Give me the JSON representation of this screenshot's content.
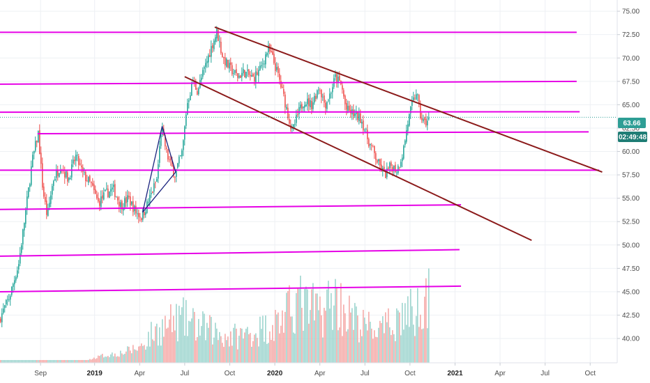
{
  "chart_data": {
    "type": "candlestick",
    "x_axis": {
      "ticks": [
        {
          "label": "Sep",
          "bold": false,
          "t": 1.4
        },
        {
          "label": "2019",
          "bold": true,
          "t": 5.0
        },
        {
          "label": "Apr",
          "bold": false,
          "t": 8.0
        },
        {
          "label": "Jul",
          "bold": false,
          "t": 11.0
        },
        {
          "label": "Oct",
          "bold": false,
          "t": 14.0
        },
        {
          "label": "2020",
          "bold": true,
          "t": 17.0
        },
        {
          "label": "Apr",
          "bold": false,
          "t": 20.0
        },
        {
          "label": "Jul",
          "bold": false,
          "t": 23.0
        },
        {
          "label": "Oct",
          "bold": false,
          "t": 26.0
        },
        {
          "label": "2021",
          "bold": true,
          "t": 29.0
        },
        {
          "label": "Apr",
          "bold": false,
          "t": 32.0
        },
        {
          "label": "Jul",
          "bold": false,
          "t": 35.0
        },
        {
          "label": "Oct",
          "bold": false,
          "t": 38.0
        }
      ],
      "xlim": [
        -1.3,
        39.8
      ]
    },
    "y_axis": {
      "ticks": [
        "75.00",
        "72.50",
        "70.00",
        "67.50",
        "65.00",
        "62.50",
        "60.00",
        "57.50",
        "55.00",
        "52.50",
        "50.00",
        "47.50",
        "45.00",
        "42.50",
        "40.00"
      ],
      "ylim": [
        37.4,
        76.2
      ],
      "step": 2.5
    },
    "last_price": {
      "value": "63.66",
      "countdown": "02:49:48",
      "value_num": 63.66
    },
    "colors": {
      "up": "#26a69a",
      "down": "#ef5350",
      "vol_up": "#9ed5cf",
      "vol_down": "#f5aaa8",
      "horizontal_lines": "#e600e6",
      "channel": "#8b1a1a",
      "pattern_lines": "#1a237e",
      "badge_price": "#2e9e95",
      "badge_timer": "#1f7d75"
    },
    "price_path": [
      [
        -1.3,
        42.0
      ],
      [
        -0.6,
        44.5
      ],
      [
        0.0,
        48.0
      ],
      [
        0.5,
        54.0
      ],
      [
        0.9,
        59.0
      ],
      [
        1.3,
        62.0
      ],
      [
        1.6,
        56.0
      ],
      [
        1.9,
        53.0
      ],
      [
        2.3,
        57.0
      ],
      [
        2.8,
        58.5
      ],
      [
        3.3,
        57.0
      ],
      [
        3.8,
        59.5
      ],
      [
        4.3,
        57.5
      ],
      [
        4.8,
        56.5
      ],
      [
        5.3,
        54.5
      ],
      [
        5.8,
        55.5
      ],
      [
        6.3,
        56.0
      ],
      [
        6.8,
        54.2
      ],
      [
        7.3,
        55.0
      ],
      [
        7.8,
        53.5
      ],
      [
        8.2,
        53.0
      ],
      [
        8.6,
        54.5
      ],
      [
        9.2,
        57.0
      ],
      [
        9.5,
        62.5
      ],
      [
        9.9,
        59.5
      ],
      [
        10.4,
        57.5
      ],
      [
        10.9,
        60.0
      ],
      [
        11.2,
        65.0
      ],
      [
        11.6,
        67.5
      ],
      [
        11.9,
        66.5
      ],
      [
        12.4,
        69.0
      ],
      [
        12.9,
        71.5
      ],
      [
        13.2,
        72.8
      ],
      [
        13.6,
        70.0
      ],
      [
        14.0,
        69.0
      ],
      [
        14.6,
        68.0
      ],
      [
        15.0,
        68.5
      ],
      [
        15.6,
        67.8
      ],
      [
        16.1,
        68.8
      ],
      [
        16.6,
        71.0
      ],
      [
        16.9,
        70.0
      ],
      [
        17.3,
        68.0
      ],
      [
        17.7,
        65.5
      ],
      [
        18.0,
        63.5
      ],
      [
        18.2,
        62.0
      ],
      [
        18.6,
        64.0
      ],
      [
        19.0,
        65.5
      ],
      [
        19.5,
        65.0
      ],
      [
        20.0,
        67.0
      ],
      [
        20.4,
        65.0
      ],
      [
        20.7,
        66.0
      ],
      [
        21.1,
        68.0
      ],
      [
        21.5,
        67.0
      ],
      [
        21.8,
        64.5
      ],
      [
        22.3,
        64.0
      ],
      [
        22.8,
        63.5
      ],
      [
        23.2,
        61.5
      ],
      [
        23.6,
        60.0
      ],
      [
        24.0,
        58.5
      ],
      [
        24.4,
        57.5
      ],
      [
        24.8,
        58.5
      ],
      [
        25.2,
        58.0
      ],
      [
        25.6,
        60.0
      ],
      [
        25.9,
        63.0
      ],
      [
        26.2,
        65.0
      ],
      [
        26.5,
        66.5
      ],
      [
        26.7,
        64.0
      ],
      [
        27.0,
        63.0
      ],
      [
        27.3,
        63.4
      ]
    ],
    "volume_path": [
      [
        -1.3,
        0.0
      ],
      [
        4.5,
        0.0
      ],
      [
        5.5,
        0.03
      ],
      [
        6.8,
        0.05
      ],
      [
        8.0,
        0.09
      ],
      [
        8.8,
        0.18
      ],
      [
        9.8,
        0.24
      ],
      [
        10.8,
        0.28
      ],
      [
        11.8,
        0.23
      ],
      [
        12.8,
        0.2
      ],
      [
        13.8,
        0.16
      ],
      [
        14.8,
        0.17
      ],
      [
        15.8,
        0.2
      ],
      [
        16.8,
        0.24
      ],
      [
        17.8,
        0.31
      ],
      [
        18.4,
        0.42
      ],
      [
        19.0,
        0.35
      ],
      [
        20.0,
        0.34
      ],
      [
        21.0,
        0.42
      ],
      [
        21.8,
        0.32
      ],
      [
        22.6,
        0.24
      ],
      [
        23.4,
        0.22
      ],
      [
        24.2,
        0.2
      ],
      [
        25.0,
        0.28
      ],
      [
        25.8,
        0.33
      ],
      [
        26.4,
        0.31
      ],
      [
        26.8,
        0.49
      ],
      [
        27.3,
        0.4
      ]
    ],
    "horizontal_lines": [
      {
        "t1": -1.3,
        "t2": 37.1,
        "v1": 72.75,
        "v2": 72.75
      },
      {
        "t1": -1.3,
        "t2": 37.1,
        "v1": 67.2,
        "v2": 67.5
      },
      {
        "t1": -1.3,
        "t2": 37.3,
        "v1": 64.2,
        "v2": 64.25
      },
      {
        "t1": 1.2,
        "t2": 37.9,
        "v1": 61.9,
        "v2": 62.1
      },
      {
        "t1": -1.3,
        "t2": 38.6,
        "v1": 58.0,
        "v2": 58.0
      },
      {
        "t1": -1.3,
        "t2": 29.4,
        "v1": 53.8,
        "v2": 54.3
      },
      {
        "t1": -1.3,
        "t2": 29.3,
        "v1": 48.8,
        "v2": 49.5
      },
      {
        "t1": -1.3,
        "t2": 29.4,
        "v1": 45.0,
        "v2": 45.6
      }
    ],
    "channel_lines": [
      {
        "t1": 13.0,
        "t2": 38.8,
        "v1": 73.3,
        "v2": 57.8
      },
      {
        "t1": 11.0,
        "t2": 34.1,
        "v1": 68.0,
        "v2": 50.5
      }
    ],
    "pattern_lines": [
      {
        "t1": 8.2,
        "t2": 9.5,
        "v1": 53.5,
        "v2": 62.7
      },
      {
        "t1": 9.5,
        "t2": 10.4,
        "v1": 62.7,
        "v2": 57.8
      },
      {
        "t1": 10.4,
        "t2": 8.2,
        "v1": 57.8,
        "v2": 53.5
      }
    ]
  }
}
